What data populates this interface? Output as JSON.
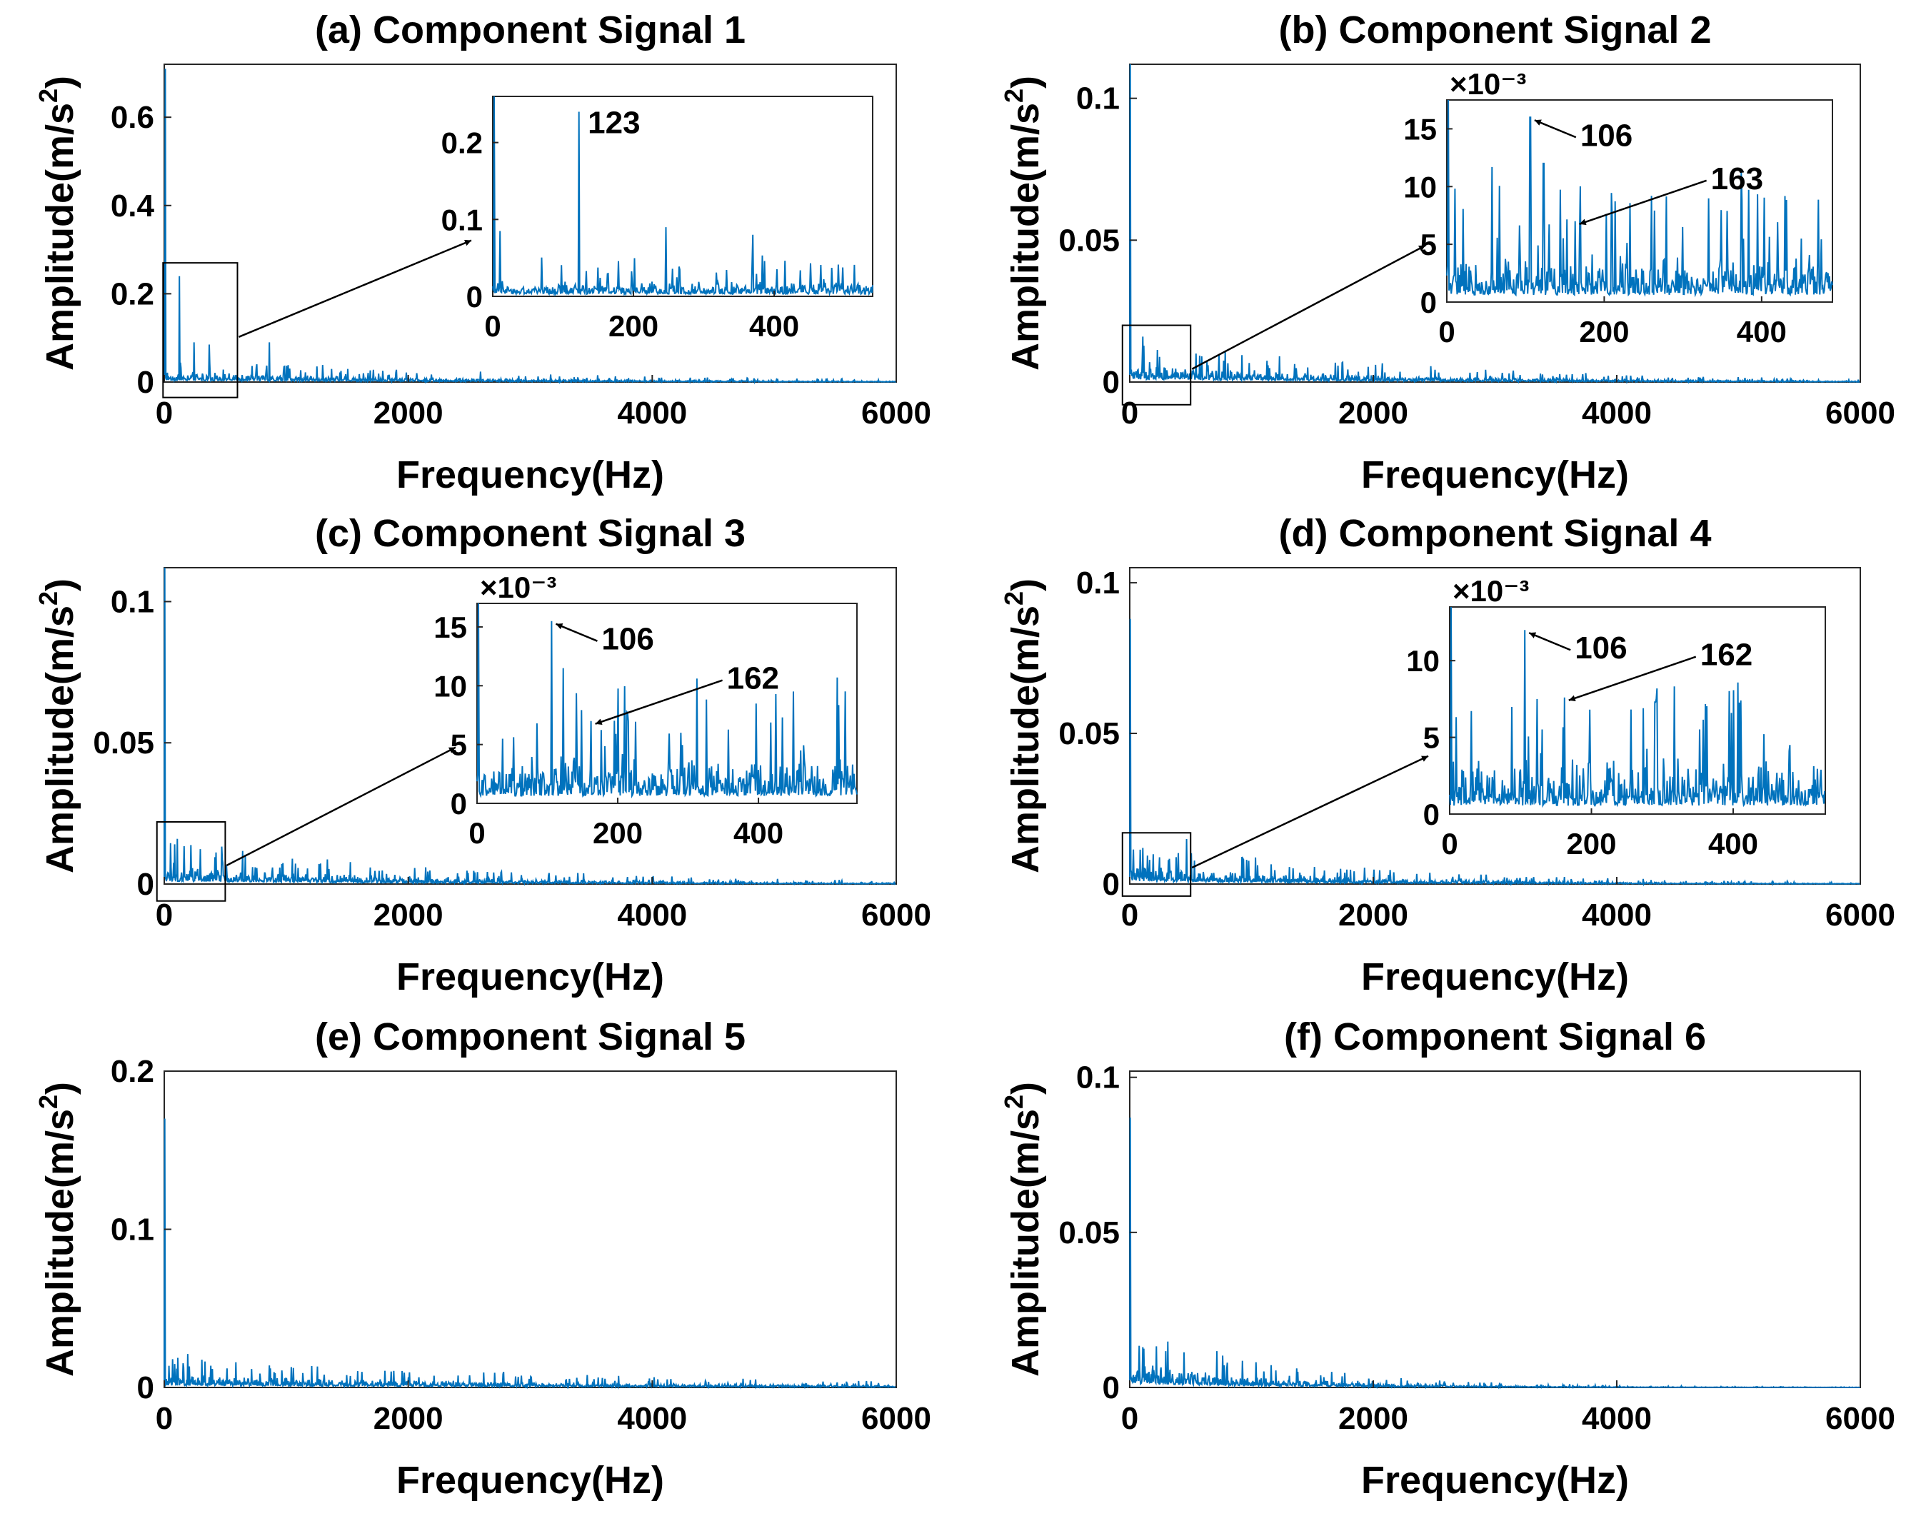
{
  "chart_data": [
    {
      "type": "line",
      "title": "(a) Component Signal 1",
      "xlabel": "Frequency(Hz)",
      "ylabel": "Amplitude(m/s^2)",
      "xlim": [
        0,
        6000
      ],
      "ylim": [
        0,
        0.72
      ],
      "xticks": [
        "0",
        "2000",
        "4000",
        "6000"
      ],
      "yticks": [
        "0",
        "0.2",
        "0.4",
        "0.6"
      ],
      "ytick_values": [
        0,
        0.2,
        0.4,
        0.6
      ],
      "color": "#0072BD",
      "series": [
        {
          "peaks": [
            [
              10,
              0.71
            ],
            [
              123,
              0.24
            ],
            [
              246,
              0.09
            ],
            [
              370,
              0.085
            ],
            [
              860,
              0.09
            ],
            [
              2070,
              0.02
            ]
          ],
          "floor": 0.015,
          "decay_hz": 2500
        }
      ],
      "inset": {
        "xlim": [
          0,
          540
        ],
        "ylim": [
          0,
          0.26
        ],
        "xticks": [
          "0",
          "200",
          "400"
        ],
        "xtick_values": [
          0,
          200,
          400
        ],
        "yticks": [
          "0",
          "0.1",
          "0.2"
        ],
        "ytick_values": [
          0,
          0.1,
          0.2
        ],
        "exponent": "",
        "zoom_box": {
          "x": [
            -10,
            600
          ],
          "y": [
            -0.035,
            0.27
          ]
        },
        "peaks": [
          [
            2,
            0.26
          ],
          [
            10,
            0.085
          ],
          [
            123,
            0.24
          ],
          [
            246,
            0.09
          ],
          [
            370,
            0.08
          ]
        ],
        "floor": 0.012,
        "annotations": [
          {
            "label": "123",
            "x": 123,
            "y": 0.24,
            "arrow": false
          }
        ]
      }
    },
    {
      "type": "line",
      "title": "(b) Component Signal 2",
      "xlabel": "Frequency(Hz)",
      "ylabel": "Amplitude(m/s^2)",
      "xlim": [
        0,
        6000
      ],
      "ylim": [
        0,
        0.112
      ],
      "xticks": [
        "0",
        "2000",
        "4000",
        "6000"
      ],
      "yticks": [
        "0",
        "0.05",
        "0.1"
      ],
      "ytick_values": [
        0,
        0.05,
        0.1
      ],
      "color": "#0072BD",
      "series": [
        {
          "peaks": [
            [
              5,
              0.112
            ],
            [
              106,
              0.016
            ],
            [
              163,
              0.007
            ]
          ],
          "floor": 0.004,
          "decay_hz": 2200
        }
      ],
      "inset": {
        "xlim": [
          0,
          490
        ],
        "ylim": [
          0,
          17.5
        ],
        "xticks": [
          "0",
          "200",
          "400"
        ],
        "xtick_values": [
          0,
          200,
          400
        ],
        "yticks": [
          "0",
          "5",
          "10",
          "15"
        ],
        "ytick_values": [
          0,
          5,
          10,
          15
        ],
        "exponent": "×10⁻³",
        "zoom_box": {
          "x": [
            -60,
            500
          ],
          "y": [
            -0.008,
            0.02
          ]
        },
        "peaks": [
          [
            2,
            17.5
          ],
          [
            106,
            16
          ],
          [
            123,
            12
          ],
          [
            163,
            7
          ],
          [
            210,
            7.2
          ],
          [
            300,
            6.5
          ],
          [
            450,
            5.5
          ]
        ],
        "floor": 2.5,
        "annotations": [
          {
            "label": "106",
            "x": 106,
            "y": 16,
            "arrow": true
          },
          {
            "label": "163",
            "x": 163,
            "y": 7,
            "arrow": true
          }
        ]
      }
    },
    {
      "type": "line",
      "title": "(c) Component Signal 3",
      "xlabel": "Frequency(Hz)",
      "ylabel": "Amplitude(m/s^2)",
      "xlim": [
        0,
        6000
      ],
      "ylim": [
        0,
        0.112
      ],
      "xticks": [
        "0",
        "2000",
        "4000",
        "6000"
      ],
      "yticks": [
        "0",
        "0.05",
        "0.1"
      ],
      "ytick_values": [
        0,
        0.05,
        0.1
      ],
      "color": "#0072BD",
      "series": [
        {
          "peaks": [
            [
              5,
              0.112
            ],
            [
              106,
              0.016
            ],
            [
              162,
              0.007
            ]
          ],
          "floor": 0.004,
          "decay_hz": 2200
        }
      ],
      "inset": {
        "xlim": [
          0,
          540
        ],
        "ylim": [
          0,
          17
        ],
        "xticks": [
          "0",
          "200",
          "400"
        ],
        "xtick_values": [
          0,
          200,
          400
        ],
        "yticks": [
          "0",
          "5",
          "10",
          "15"
        ],
        "ytick_values": [
          0,
          5,
          10,
          15
        ],
        "exponent": "×10⁻³",
        "zoom_box": {
          "x": [
            -60,
            500
          ],
          "y": [
            -0.006,
            0.022
          ]
        },
        "peaks": [
          [
            2,
            17
          ],
          [
            106,
            15.5
          ],
          [
            123,
            11.5
          ],
          [
            162,
            7
          ],
          [
            215,
            7
          ],
          [
            290,
            6
          ],
          [
            460,
            4.5
          ]
        ],
        "floor": 2.5,
        "annotations": [
          {
            "label": "106",
            "x": 106,
            "y": 15.5,
            "arrow": true
          },
          {
            "label": "162",
            "x": 162,
            "y": 7,
            "arrow": true
          }
        ]
      }
    },
    {
      "type": "line",
      "title": "(d) Component Signal 4",
      "xlabel": "Frequency(Hz)",
      "ylabel": "Amplitude(m/s^2)",
      "xlim": [
        0,
        6000
      ],
      "ylim": [
        0,
        0.105
      ],
      "xticks": [
        "0",
        "2000",
        "4000",
        "6000"
      ],
      "yticks": [
        "0",
        "0.05",
        "0.1"
      ],
      "ytick_values": [
        0,
        0.05,
        0.1
      ],
      "color": "#0072BD",
      "series": [
        {
          "peaks": [
            [
              5,
              0.088
            ],
            [
              106,
              0.012
            ],
            [
              162,
              0.008
            ]
          ],
          "floor": 0.004,
          "decay_hz": 1800
        }
      ],
      "inset": {
        "xlim": [
          0,
          530
        ],
        "ylim": [
          0,
          13.5
        ],
        "xticks": [
          "0",
          "200",
          "400"
        ],
        "xtick_values": [
          0,
          200,
          400
        ],
        "yticks": [
          "0",
          "5",
          "10"
        ],
        "ytick_values": [
          0,
          5,
          10
        ],
        "exponent": "×10⁻³",
        "zoom_box": {
          "x": [
            -60,
            500
          ],
          "y": [
            -0.004,
            0.017
          ]
        },
        "peaks": [
          [
            2,
            13.5
          ],
          [
            106,
            12
          ],
          [
            123,
            7.5
          ],
          [
            162,
            7.6
          ],
          [
            290,
            7.3
          ],
          [
            480,
            4.5
          ]
        ],
        "floor": 2.2,
        "annotations": [
          {
            "label": "106",
            "x": 106,
            "y": 12,
            "arrow": true
          },
          {
            "label": "162",
            "x": 162,
            "y": 7.6,
            "arrow": true
          }
        ]
      }
    },
    {
      "type": "line",
      "title": "(e) Component Signal 5",
      "xlabel": "Frequency(Hz)",
      "ylabel": "Amplitude(m/s^2)",
      "xlim": [
        0,
        6000
      ],
      "ylim": [
        0,
        0.2
      ],
      "xticks": [
        "0",
        "2000",
        "4000",
        "6000"
      ],
      "yticks": [
        "0",
        "0.1",
        "0.2"
      ],
      "ytick_values": [
        0,
        0.1,
        0.2
      ],
      "color": "#0072BD",
      "series": [
        {
          "peaks": [
            [
              5,
              0.17
            ],
            [
              160,
              0.013
            ]
          ],
          "floor": 0.005,
          "decay_hz": 3500
        }
      ]
    },
    {
      "type": "line",
      "title": "(f) Component Signal 6",
      "xlabel": "Frequency(Hz)",
      "ylabel": "Amplitude(m/s^2)",
      "xlim": [
        0,
        6000
      ],
      "ylim": [
        0,
        0.102
      ],
      "xticks": [
        "0",
        "2000",
        "4000",
        "6000"
      ],
      "yticks": [
        "0",
        "0.05",
        "0.1"
      ],
      "ytick_values": [
        0,
        0.05,
        0.1
      ],
      "color": "#0072BD",
      "series": [
        {
          "peaks": [
            [
              5,
              0.087
            ],
            [
              106,
              0.013
            ],
            [
              800,
              0.008
            ]
          ],
          "floor": 0.005,
          "decay_hz": 1200
        }
      ]
    }
  ]
}
